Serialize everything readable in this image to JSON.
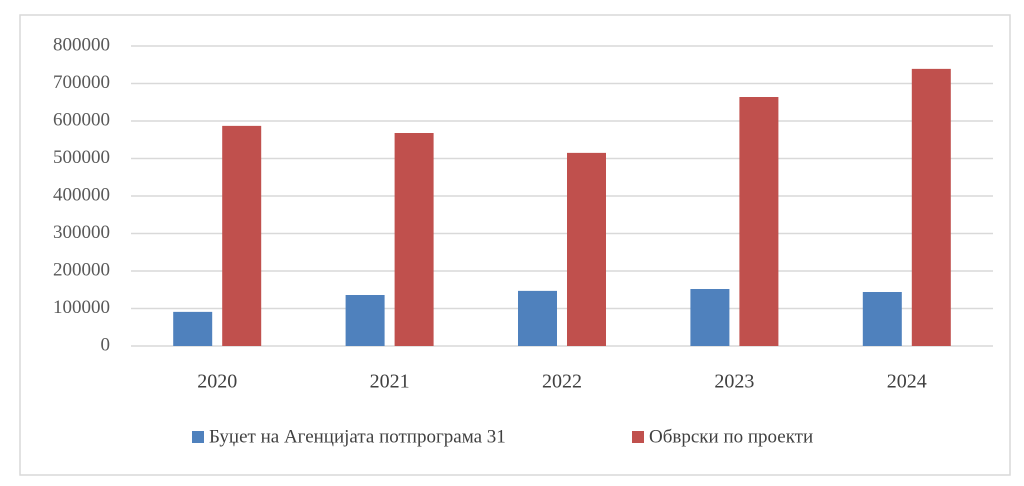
{
  "chart_data": {
    "type": "bar",
    "categories": [
      "2020",
      "2021",
      "2022",
      "2023",
      "2024"
    ],
    "series": [
      {
        "name": "Буџет на Агенцијата потпрограма 31",
        "color": "#4f81bd",
        "values": [
          91000,
          136000,
          147000,
          152000,
          144000
        ]
      },
      {
        "name": "Обврски по проекти",
        "color": "#c0504d",
        "values": [
          587000,
          568000,
          515000,
          664000,
          739000
        ]
      }
    ],
    "ylim": [
      0,
      800000
    ],
    "yticks": [
      0,
      100000,
      200000,
      300000,
      400000,
      500000,
      600000,
      700000,
      800000
    ],
    "grid": true,
    "legend": "bottom"
  }
}
